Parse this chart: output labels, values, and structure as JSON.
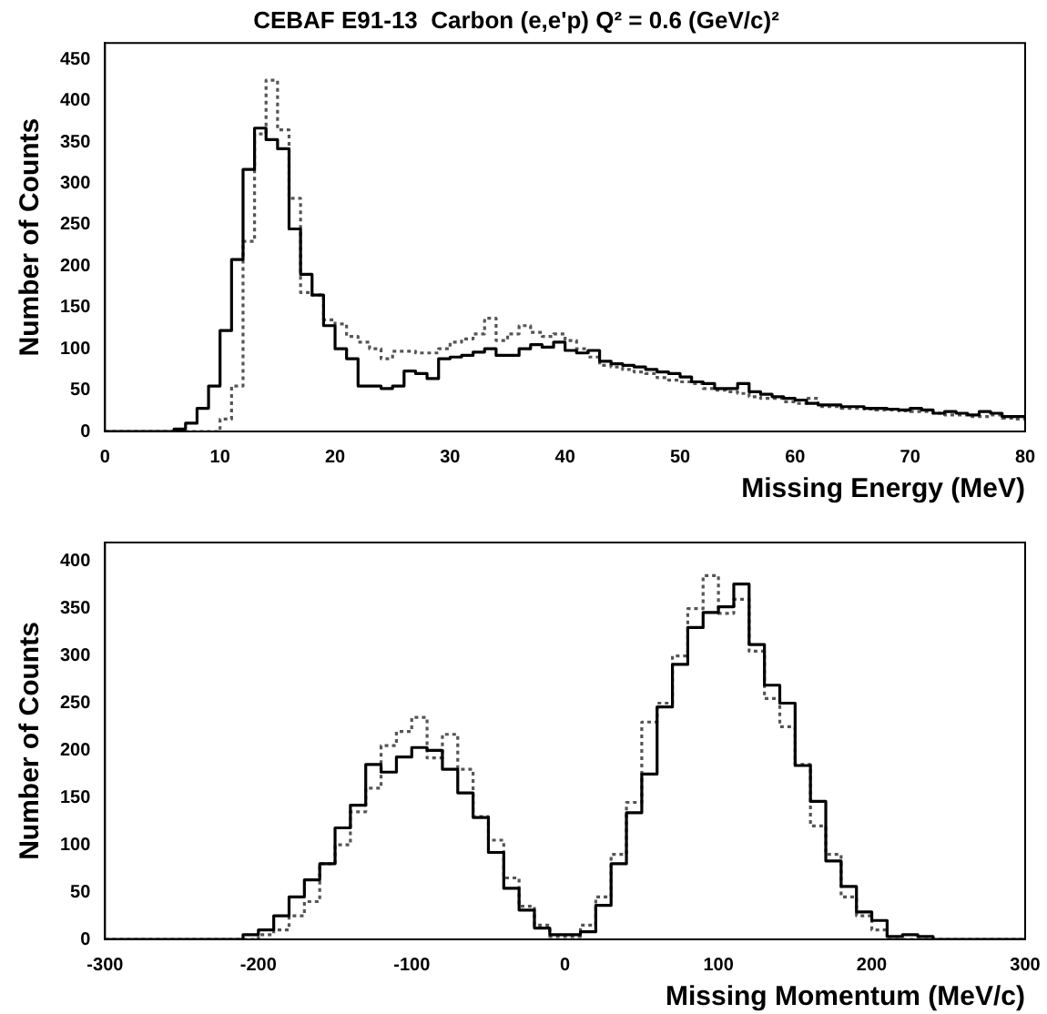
{
  "chart_data": [
    {
      "type": "histogram",
      "title": "CEBAF E91-13  Carbon (e,e'p) Q² = 0.6 (GeV/c)²",
      "xlabel": "Missing Energy (MeV)",
      "ylabel": "Number of Counts",
      "bins": [
        0,
        1,
        2,
        3,
        4,
        5,
        6,
        7,
        8,
        9,
        10,
        11,
        12,
        13,
        14,
        15,
        16,
        17,
        18,
        19,
        20,
        21,
        22,
        23,
        24,
        25,
        26,
        27,
        28,
        29,
        30,
        31,
        32,
        33,
        34,
        35,
        36,
        37,
        38,
        39,
        40,
        41,
        42,
        43,
        44,
        45,
        46,
        47,
        48,
        49,
        50,
        51,
        52,
        53,
        54,
        55,
        56,
        57,
        58,
        59,
        60,
        61,
        62,
        63,
        64,
        65,
        66,
        67,
        68,
        69,
        70,
        71,
        72,
        73,
        74,
        75,
        76,
        77,
        78,
        79,
        80
      ],
      "series": [
        {
          "color": "#000000",
          "line_style": "solid",
          "values": [
            0,
            0,
            0,
            0,
            0,
            0,
            3,
            10,
            28,
            55,
            122,
            208,
            317,
            367,
            353,
            342,
            245,
            190,
            165,
            128,
            100,
            88,
            55,
            55,
            52,
            55,
            73,
            70,
            64,
            88,
            90,
            92,
            96,
            100,
            92,
            92,
            100,
            105,
            102,
            108,
            98,
            95,
            98,
            85,
            82,
            80,
            78,
            75,
            72,
            70,
            66,
            60,
            58,
            52,
            52,
            58,
            48,
            45,
            42,
            40,
            38,
            34,
            32,
            32,
            30,
            30,
            28,
            28,
            27,
            26,
            28,
            26,
            22,
            24,
            22,
            20,
            24,
            22,
            18,
            18
          ]
        },
        {
          "color": "#555555",
          "line_style": "dotted",
          "values": [
            0,
            0,
            0,
            0,
            0,
            0,
            0,
            0,
            0,
            0,
            15,
            55,
            230,
            360,
            425,
            365,
            282,
            168,
            165,
            135,
            130,
            115,
            108,
            100,
            88,
            97,
            97,
            95,
            95,
            100,
            108,
            112,
            118,
            137,
            110,
            118,
            128,
            120,
            115,
            118,
            110,
            100,
            90,
            80,
            78,
            75,
            72,
            70,
            65,
            62,
            60,
            58,
            52,
            50,
            48,
            46,
            42,
            40,
            40,
            36,
            34,
            40,
            30,
            30,
            28,
            28,
            27,
            26,
            26,
            25,
            24,
            24,
            22,
            20,
            20,
            18,
            18,
            20,
            16,
            15
          ]
        }
      ],
      "xlim": [
        0,
        80
      ],
      "xticks": [
        0,
        10,
        20,
        30,
        40,
        50,
        60,
        70,
        80
      ],
      "ylim": [
        0,
        470
      ],
      "yticks": [
        0,
        50,
        100,
        150,
        200,
        250,
        300,
        350,
        400,
        450
      ],
      "grid": false,
      "legend": false
    },
    {
      "type": "histogram",
      "xlabel": "Missing Momentum (MeV/c)",
      "ylabel": "Number of Counts",
      "bins": [
        -300,
        -290,
        -280,
        -270,
        -260,
        -250,
        -240,
        -230,
        -220,
        -210,
        -200,
        -190,
        -180,
        -170,
        -160,
        -150,
        -140,
        -130,
        -120,
        -110,
        -100,
        -90,
        -80,
        -70,
        -60,
        -50,
        -40,
        -30,
        -20,
        -10,
        0,
        10,
        20,
        30,
        40,
        50,
        60,
        70,
        80,
        90,
        100,
        110,
        120,
        130,
        140,
        150,
        160,
        170,
        180,
        190,
        200,
        210,
        220,
        230,
        240,
        250,
        260,
        270,
        280,
        290,
        300
      ],
      "series": [
        {
          "color": "#000000",
          "line_style": "solid",
          "values": [
            0,
            0,
            0,
            0,
            0,
            0,
            0,
            0,
            0,
            5,
            10,
            25,
            45,
            63,
            80,
            118,
            142,
            185,
            177,
            193,
            203,
            200,
            180,
            155,
            129,
            92,
            54,
            31,
            12,
            5,
            5,
            8,
            36,
            80,
            134,
            175,
            246,
            291,
            330,
            346,
            352,
            376,
            312,
            269,
            250,
            184,
            146,
            83,
            56,
            29,
            20,
            3,
            5,
            3,
            0,
            0,
            0,
            0,
            0,
            0
          ]
        },
        {
          "color": "#555555",
          "line_style": "dotted",
          "values": [
            0,
            0,
            0,
            0,
            0,
            0,
            0,
            0,
            0,
            0,
            5,
            10,
            25,
            40,
            80,
            100,
            135,
            160,
            205,
            220,
            235,
            192,
            217,
            180,
            130,
            105,
            65,
            35,
            15,
            3,
            3,
            15,
            45,
            90,
            145,
            230,
            250,
            300,
            350,
            385,
            345,
            360,
            305,
            255,
            225,
            185,
            120,
            90,
            45,
            25,
            10,
            0,
            0,
            0,
            0,
            0,
            0,
            0,
            0,
            0
          ]
        }
      ],
      "xlim": [
        -300,
        300
      ],
      "xticks": [
        -300,
        -200,
        -100,
        0,
        100,
        200,
        300
      ],
      "ylim": [
        0,
        420
      ],
      "yticks": [
        0,
        50,
        100,
        150,
        200,
        250,
        300,
        350,
        400
      ],
      "grid": false,
      "legend": false
    }
  ]
}
